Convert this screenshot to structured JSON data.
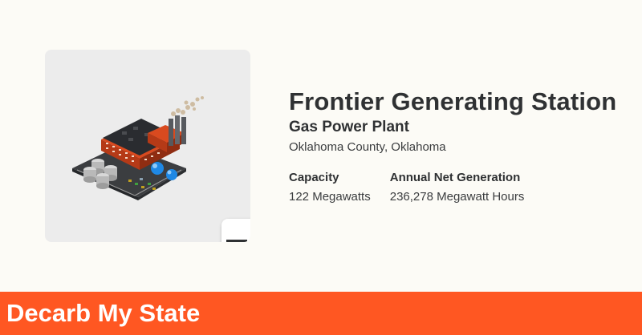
{
  "plant": {
    "name": "Frontier Generating Station",
    "type": "Gas Power Plant",
    "location": "Oklahoma County, Oklahoma"
  },
  "stats": {
    "capacity_label": "Capacity",
    "capacity_value": "122 Megawatts",
    "generation_label": "Annual Net Generation",
    "generation_value": "236,278 Megawatt Hours"
  },
  "brand": {
    "name": "Decarb My State"
  },
  "icons": {
    "illustration": "gas-power-plant-illustration",
    "state": "oklahoma-state-icon"
  },
  "colors": {
    "accent": "#ff5722",
    "text": "#2f3133",
    "background": "#fcfbf6",
    "card": "#ececec"
  }
}
